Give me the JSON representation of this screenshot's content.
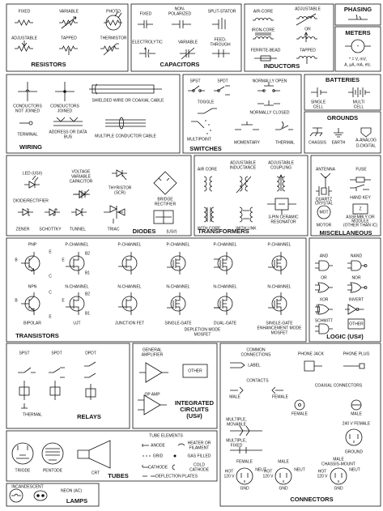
{
  "resistors": {
    "title": "RESISTORS",
    "labels": [
      "FIXED",
      "VARIABLE",
      "PHOTO",
      "ADJUSTABLE",
      "TAPPED",
      "THERMISTOR"
    ]
  },
  "capacitors": {
    "title": "CAPACITORS",
    "labels": [
      "FIXED",
      "NON-",
      "POLARIZED",
      "SPLIT-STATOR",
      "ELECTROLYTIC",
      "VARIABLE",
      "FEED-",
      "THROUGH"
    ]
  },
  "inductors": {
    "title": "INDUCTORS",
    "labels": [
      "AIR-CORE",
      "ADJUSTABLE",
      "IRON-CORE",
      "OR",
      "FERRITE-BEAD",
      "TAPPED"
    ]
  },
  "phasing": {
    "title": "PHASING"
  },
  "meters": {
    "title": "METERS",
    "symbol": "*",
    "note": [
      "* = V, mV,",
      "A, μA, mA, etc."
    ]
  },
  "wiring": {
    "title": "WIRING",
    "labels": [
      "CONDUCTORS",
      "NOT JOINED",
      "CONDUCTORS",
      "JOINED",
      "SHIELDED WIRE OR COAXIAL CABLE",
      "TERMINAL",
      "ADDRESS OR DATA",
      "BUS",
      "MULTIPLE CONDUCTOR CABLE"
    ]
  },
  "switches": {
    "title": "SWITCHES",
    "labels": [
      "SPST",
      "SPDT",
      "NORMALLY OPEN",
      "TOGGLE",
      "NORMALLY CLOSED",
      "MULTIPOINT",
      "MOMENTARY",
      "THERMAL"
    ]
  },
  "batteries": {
    "title": "BATTERIES",
    "labels": [
      "SINGLE",
      "CELL",
      "MULTI",
      "CELL"
    ]
  },
  "grounds": {
    "title": "GROUNDS",
    "labels": [
      "CHASSIS",
      "EARTH",
      "A-ANALOG",
      "D-DIGITAL"
    ]
  },
  "diodes": {
    "title": "DIODES",
    "title_note": "(US#)",
    "labels": [
      "LED (US#)",
      "VOLTAGE",
      "VARIABLE",
      "CAPACITOR",
      "THYRISTOR",
      "(SCR)",
      "BRIDGE",
      "RECTIFIER",
      "DIODE/RECTIFIER",
      "ZENER",
      "SCHOTTKY",
      "TUNNEL",
      "TRIAC"
    ]
  },
  "transformers": {
    "title": "TRANSFORMERS",
    "labels": [
      "AIR CORE",
      "ADJUSTABLE",
      "INDUCTANCE",
      "ADJUSTABLE",
      "COUPLING",
      "WITH CORE",
      "WITH LINK",
      "3-PIN CERAMIC",
      "RESONATOR"
    ]
  },
  "miscellaneous": {
    "title": "MISCELLANEOUS",
    "labels": [
      "ANTENNA",
      "FUSE",
      "HAND KEY",
      "QUARTZ",
      "CRYSTAL",
      "MOT",
      "Z",
      "MOTOR",
      "ASSEMBLY OR",
      "MODULE",
      "(OTHER THAN IC)"
    ]
  },
  "transistors": {
    "title": "TRANSISTORS",
    "labels": [
      "PNP",
      "P-CHANNEL",
      "P-CHANNEL",
      "P-CHANNEL",
      "P-CHANNEL",
      "P-CHANNEL",
      "NPN",
      "N-CHANNEL",
      "N-CHANNEL",
      "N-CHANNEL",
      "N-CHANNEL",
      "N-CHANNEL",
      "BIPOLAR",
      "UJT",
      "JUNCTION FET",
      "SINGLE-GATE",
      "DUAL-GATE",
      "SINGLE-GATE",
      "ENHANCEMENT MODE",
      "MOSFET",
      "DEPLETION MODE",
      "MOSFET"
    ],
    "pins": [
      "E",
      "B",
      "C",
      "C",
      "B",
      "E",
      "B2",
      "E",
      "B1",
      "B2",
      "E",
      "B1"
    ]
  },
  "logic": {
    "title": "LOGIC (US#)",
    "labels": [
      "AND",
      "NAND",
      "OR",
      "NOR",
      "XOR",
      "INVERT",
      "SCHMITT",
      "OTHER"
    ]
  },
  "relays": {
    "title": "RELAYS",
    "labels": [
      "SPST",
      "SPDT",
      "DPDT",
      "THERMAL"
    ]
  },
  "integrated_circuits": {
    "title": [
      "INTEGRATED",
      "CIRCUITS",
      "(US#)"
    ],
    "labels": [
      "GENERAL",
      "AMPLIFIER",
      "OTHER",
      "OP AMP"
    ]
  },
  "connectors": {
    "title": "CONNECTORS",
    "labels": [
      "COMMON",
      "CONNECTIONS",
      "LABEL",
      "CONTACTS",
      "MALE",
      "FEMALE",
      "PHONE JACK",
      "PHONE PLUG",
      "COAXIAL CONNECTORS",
      "FEMALE",
      "MALE",
      "MULTIPLE,",
      "MOVABLE",
      "MULTIPLE,",
      "FIXED",
      "240 V FEMALE",
      "GROUND",
      "FEMALE",
      "MALE",
      "MALE",
      "CHASSIS-MOUNT",
      "HOT",
      "120 V",
      "NEUT",
      "GND",
      "HOT",
      "120 V",
      "NEUT",
      "GND",
      "HOT",
      "120 V",
      "NEUT",
      "GND"
    ]
  },
  "tubes": {
    "title": "TUBES",
    "labels": [
      "TRIODE",
      "PENTODE",
      "CRT",
      "TUBE ELEMENTS",
      "ANODE",
      "HEATER OR",
      "FILAMENT",
      "GRID",
      "GAS FILLED",
      "CATHODE",
      "COLD",
      "CATHODE",
      "DEFLECTION PLATES"
    ]
  },
  "lamps": {
    "title": "LAMPS",
    "labels": [
      "INCANDESCENT",
      "NEON (AC)"
    ]
  }
}
